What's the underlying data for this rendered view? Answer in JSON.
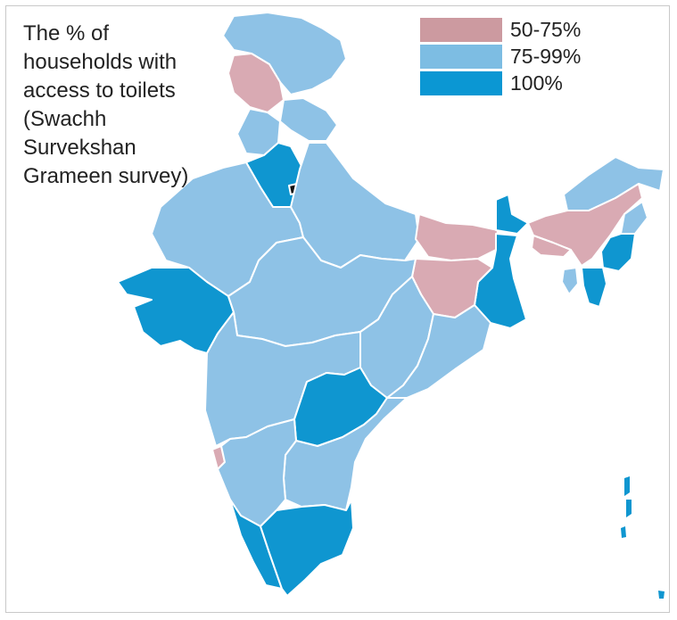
{
  "title": "The % of households with access to toilets (Swachh Survekshan Grameen survey)",
  "legend": {
    "items": [
      {
        "label": "50-75%",
        "color": "#cc9aa0"
      },
      {
        "label": "75-99%",
        "color": "#7dbde3"
      },
      {
        "label": "100%",
        "color": "#0b97d3"
      }
    ]
  },
  "colors": {
    "low": "#d9aab3",
    "mid": "#8ec2e6",
    "high": "#0f96d0",
    "delhi": "#111111"
  },
  "regions": [
    {
      "name": "Jammu & Kashmir",
      "category": "75-99%"
    },
    {
      "name": "Himachal Pradesh",
      "category": "50-75%"
    },
    {
      "name": "Punjab",
      "category": "75-99%"
    },
    {
      "name": "Haryana",
      "category": "100%"
    },
    {
      "name": "Uttarakhand",
      "category": "75-99%"
    },
    {
      "name": "Delhi",
      "category": "delhi"
    },
    {
      "name": "Rajasthan",
      "category": "75-99%"
    },
    {
      "name": "Uttar Pradesh",
      "category": "75-99%"
    },
    {
      "name": "Gujarat",
      "category": "100%"
    },
    {
      "name": "Madhya Pradesh",
      "category": "75-99%"
    },
    {
      "name": "Bihar",
      "category": "50-75%"
    },
    {
      "name": "Jharkhand",
      "category": "50-75%"
    },
    {
      "name": "West Bengal",
      "category": "100%"
    },
    {
      "name": "Sikkim",
      "category": "100%"
    },
    {
      "name": "Assam",
      "category": "50-75%"
    },
    {
      "name": "Arunachal Pradesh",
      "category": "75-99%"
    },
    {
      "name": "Meghalaya",
      "category": "50-75%"
    },
    {
      "name": "Nagaland",
      "category": "75-99%"
    },
    {
      "name": "Manipur",
      "category": "100%"
    },
    {
      "name": "Mizoram",
      "category": "100%"
    },
    {
      "name": "Tripura",
      "category": "75-99%"
    },
    {
      "name": "Chhattisgarh",
      "category": "75-99%"
    },
    {
      "name": "Odisha",
      "category": "75-99%"
    },
    {
      "name": "Maharashtra",
      "category": "75-99%"
    },
    {
      "name": "Telangana",
      "category": "100%"
    },
    {
      "name": "Andhra Pradesh",
      "category": "75-99%"
    },
    {
      "name": "Goa",
      "category": "50-75%"
    },
    {
      "name": "Karnataka",
      "category": "75-99%"
    },
    {
      "name": "Kerala",
      "category": "100%"
    },
    {
      "name": "Tamil Nadu",
      "category": "100%"
    },
    {
      "name": "Andaman & Nicobar Islands",
      "category": "100%"
    }
  ]
}
